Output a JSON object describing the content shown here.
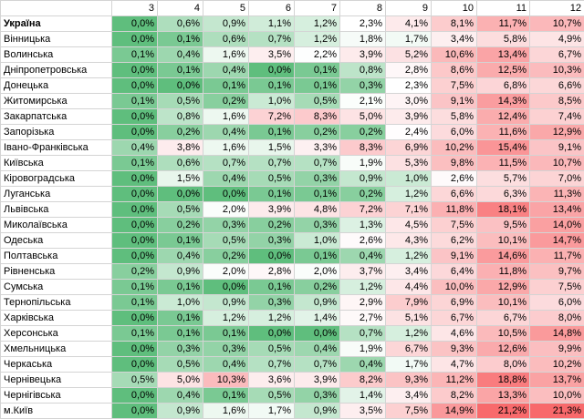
{
  "sheet": {
    "columns": [
      "3",
      "4",
      "5",
      "6",
      "7",
      "8",
      "9",
      "10",
      "11",
      "12"
    ],
    "rows": [
      {
        "region": "Україна",
        "bold": true,
        "values": [
          "0,0%",
          "0,6%",
          "0,9%",
          "1,1%",
          "1,2%",
          "2,3%",
          "4,1%",
          "8,1%",
          "11,7%",
          "10,7%"
        ]
      },
      {
        "region": "Вінницька",
        "values": [
          "0,0%",
          "0,1%",
          "0,6%",
          "0,7%",
          "1,2%",
          "1,8%",
          "1,7%",
          "3,4%",
          "5,8%",
          "4,9%"
        ]
      },
      {
        "region": "Волинська",
        "values": [
          "0,1%",
          "0,4%",
          "1,6%",
          "3,5%",
          "2,2%",
          "3,9%",
          "5,2%",
          "10,6%",
          "13,4%",
          "6,7%"
        ]
      },
      {
        "region": "Дніпропетровська",
        "values": [
          "0,0%",
          "0,1%",
          "0,4%",
          "0,0%",
          "0,1%",
          "0,8%",
          "2,8%",
          "8,6%",
          "12,5%",
          "10,3%"
        ]
      },
      {
        "region": "Донецька",
        "values": [
          "0,0%",
          "0,0%",
          "0,1%",
          "0,1%",
          "0,1%",
          "0,3%",
          "2,3%",
          "7,5%",
          "6,8%",
          "6,6%"
        ]
      },
      {
        "region": "Житомирська",
        "values": [
          "0,1%",
          "0,5%",
          "0,2%",
          "1,0%",
          "0,5%",
          "2,1%",
          "3,0%",
          "9,1%",
          "14,3%",
          "8,5%"
        ]
      },
      {
        "region": "Закарпатська",
        "values": [
          "0,0%",
          "0,8%",
          "1,6%",
          "7,2%",
          "8,3%",
          "5,0%",
          "3,9%",
          "5,8%",
          "12,4%",
          "7,4%"
        ]
      },
      {
        "region": "Запорізька",
        "values": [
          "0,0%",
          "0,2%",
          "0,4%",
          "0,1%",
          "0,2%",
          "0,2%",
          "2,4%",
          "6,0%",
          "11,6%",
          "12,9%"
        ]
      },
      {
        "region": "Івано-Франківська",
        "values": [
          "0,4%",
          "3,8%",
          "1,6%",
          "1,5%",
          "3,3%",
          "8,3%",
          "6,9%",
          "10,2%",
          "15,4%",
          "9,1%"
        ]
      },
      {
        "region": "Київська",
        "values": [
          "0,1%",
          "0,6%",
          "0,7%",
          "0,7%",
          "0,7%",
          "1,9%",
          "5,3%",
          "9,8%",
          "11,5%",
          "10,7%"
        ]
      },
      {
        "region": "Кіровоградська",
        "values": [
          "0,0%",
          "1,5%",
          "0,4%",
          "0,5%",
          "0,3%",
          "0,9%",
          "1,0%",
          "2,6%",
          "5,7%",
          "7,0%"
        ]
      },
      {
        "region": "Луганська",
        "values": [
          "0,0%",
          "0,0%",
          "0,0%",
          "0,1%",
          "0,1%",
          "0,2%",
          "1,2%",
          "6,6%",
          "6,3%",
          "11,3%"
        ]
      },
      {
        "region": "Львівська",
        "values": [
          "0,0%",
          "0,5%",
          "2,0%",
          "3,9%",
          "4,8%",
          "7,2%",
          "7,1%",
          "11,8%",
          "18,1%",
          "13,4%"
        ]
      },
      {
        "region": "Миколаївська",
        "values": [
          "0,0%",
          "0,2%",
          "0,3%",
          "0,2%",
          "0,3%",
          "1,3%",
          "4,5%",
          "7,5%",
          "9,5%",
          "14,0%"
        ]
      },
      {
        "region": "Одеська",
        "values": [
          "0,0%",
          "0,1%",
          "0,5%",
          "0,3%",
          "1,0%",
          "2,6%",
          "4,3%",
          "6,2%",
          "10,1%",
          "14,7%"
        ]
      },
      {
        "region": "Полтавська",
        "values": [
          "0,0%",
          "0,4%",
          "0,2%",
          "0,0%",
          "0,1%",
          "0,4%",
          "1,2%",
          "9,1%",
          "14,6%",
          "11,7%"
        ]
      },
      {
        "region": "Рівненська",
        "values": [
          "0,2%",
          "0,9%",
          "2,0%",
          "2,8%",
          "2,0%",
          "3,7%",
          "3,4%",
          "6,4%",
          "11,8%",
          "9,7%"
        ]
      },
      {
        "region": "Сумська",
        "values": [
          "0,1%",
          "0,1%",
          "0,0%",
          "0,1%",
          "0,2%",
          "1,2%",
          "4,4%",
          "10,0%",
          "12,9%",
          "7,5%"
        ]
      },
      {
        "region": "Тернопільська",
        "values": [
          "0,1%",
          "1,0%",
          "0,9%",
          "0,3%",
          "0,9%",
          "2,9%",
          "7,9%",
          "6,9%",
          "10,1%",
          "6,0%"
        ]
      },
      {
        "region": "Харківська",
        "values": [
          "0,0%",
          "0,1%",
          "1,2%",
          "1,2%",
          "1,4%",
          "2,7%",
          "5,1%",
          "6,7%",
          "6,7%",
          "8,0%"
        ]
      },
      {
        "region": "Херсонська",
        "values": [
          "0,1%",
          "0,1%",
          "0,1%",
          "0,0%",
          "0,0%",
          "0,7%",
          "1,2%",
          "4,6%",
          "10,5%",
          "14,8%"
        ]
      },
      {
        "region": "Хмельницька",
        "values": [
          "0,0%",
          "0,3%",
          "0,3%",
          "0,5%",
          "0,4%",
          "1,9%",
          "6,7%",
          "9,3%",
          "12,6%",
          "9,9%"
        ]
      },
      {
        "region": "Черкаська",
        "values": [
          "0,0%",
          "0,5%",
          "0,4%",
          "0,7%",
          "0,7%",
          "0,4%",
          "1,7%",
          "4,7%",
          "8,0%",
          "10,2%"
        ]
      },
      {
        "region": "Чернівецька",
        "values": [
          "0,5%",
          "5,0%",
          "10,3%",
          "3,6%",
          "3,9%",
          "8,2%",
          "9,3%",
          "11,2%",
          "18,8%",
          "13,7%"
        ]
      },
      {
        "region": "Чернігівська",
        "values": [
          "0,0%",
          "0,4%",
          "0,1%",
          "0,5%",
          "0,3%",
          "1,4%",
          "3,4%",
          "8,2%",
          "13,3%",
          "10,0%"
        ]
      },
      {
        "region": "м.Київ",
        "values": [
          "0,0%",
          "0,9%",
          "1,6%",
          "1,7%",
          "0,9%",
          "3,5%",
          "7,5%",
          "14,9%",
          "21,2%",
          "21,3%"
        ]
      }
    ],
    "colors": {
      "green_strong": "#5fbe7d",
      "green_light": "#f5fbf7",
      "white": "#ffffff",
      "red_light": "#fdf0f1",
      "red_strong": "#f8696b"
    }
  }
}
